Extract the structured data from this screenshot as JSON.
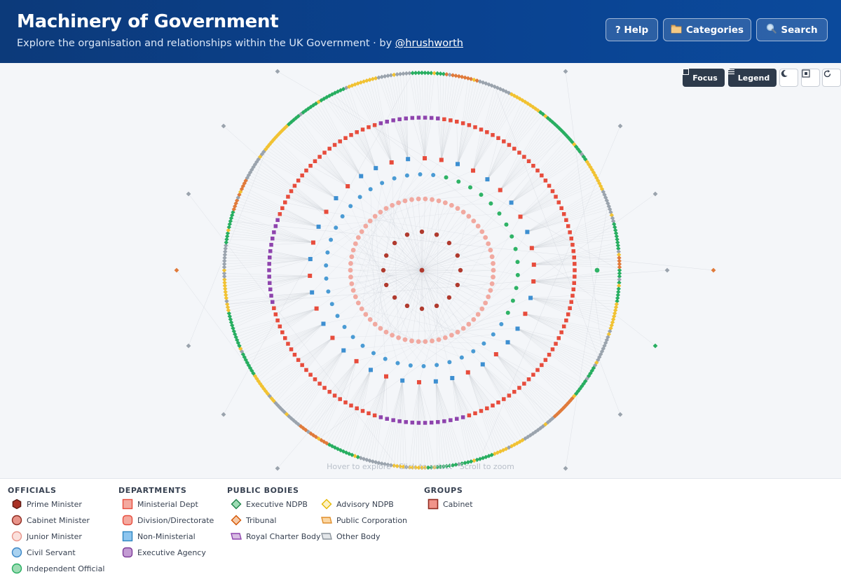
{
  "header": {
    "title": "Machinery of Government",
    "subtitle": "Explore the organisation and relationships within the UK Government · by ",
    "author_link": "@hrushworth"
  },
  "actions": {
    "help": "? Help",
    "categories": "Categories",
    "categories_icon": "folder-icon",
    "search": "Search",
    "search_icon": "magnifier-icon"
  },
  "toolbar": {
    "focus": "Focus",
    "legend": "Legend",
    "dark_mode_icon": "moon-icon",
    "fit_icon": "fit-view-icon",
    "reset_icon": "reset-icon"
  },
  "canvas": {
    "hint": "Hover to explore · Click to select · Scroll to zoom"
  },
  "graph": {
    "rings": [
      {
        "name": "cabinet-ministers",
        "count": 16,
        "shape": "circle",
        "color": "#c0392b"
      },
      {
        "name": "junior-ministers",
        "count": 66,
        "shape": "circle",
        "color": "#f1a9a0"
      },
      {
        "name": "civil-servants",
        "count": 46,
        "shape": "circle",
        "color": "#4a9bd4"
      },
      {
        "name": "independent-officials",
        "count": 14,
        "shape": "circle",
        "color": "#27ae60"
      },
      {
        "name": "departments",
        "count": 42,
        "shape": "square",
        "color": "#e74c3c"
      },
      {
        "name": "divisions-agencies",
        "count": 150,
        "shape": "square",
        "color": "#e74c3c"
      },
      {
        "name": "public-bodies",
        "count": 400,
        "shape": "diamond",
        "color": "#2eae62"
      }
    ],
    "colors": {
      "edge": "#c7ccd3",
      "pm": "#b03a2e",
      "junior": "#f1a9a0",
      "civil": "#4a9bd4",
      "independent": "#2fb366",
      "ministerial": "#e74c3c",
      "non_ministerial": "#3d8fd1",
      "agency": "#8e44ad",
      "executive_ndpb": "#27ae60",
      "advisory": "#f1c232",
      "tribunal": "#e07a3a",
      "other_body": "#9aa3ad"
    }
  },
  "legend": {
    "officials": {
      "heading": "OFFICIALS",
      "items": [
        "Prime Minister",
        "Cabinet Minister",
        "Junior Minister",
        "Civil Servant",
        "Independent Official"
      ]
    },
    "departments": {
      "heading": "DEPARTMENTS",
      "items": [
        "Ministerial Dept",
        "Division/Directorate",
        "Non-Ministerial",
        "Executive Agency"
      ]
    },
    "public_bodies": {
      "heading": "PUBLIC BODIES",
      "col1": [
        "Executive NDPB",
        "Tribunal",
        "Royal Charter Body"
      ],
      "col2": [
        "Advisory NDPB",
        "Public Corporation",
        "Other Body"
      ]
    },
    "groups": {
      "heading": "GROUPS",
      "items": [
        "Cabinet"
      ]
    }
  }
}
